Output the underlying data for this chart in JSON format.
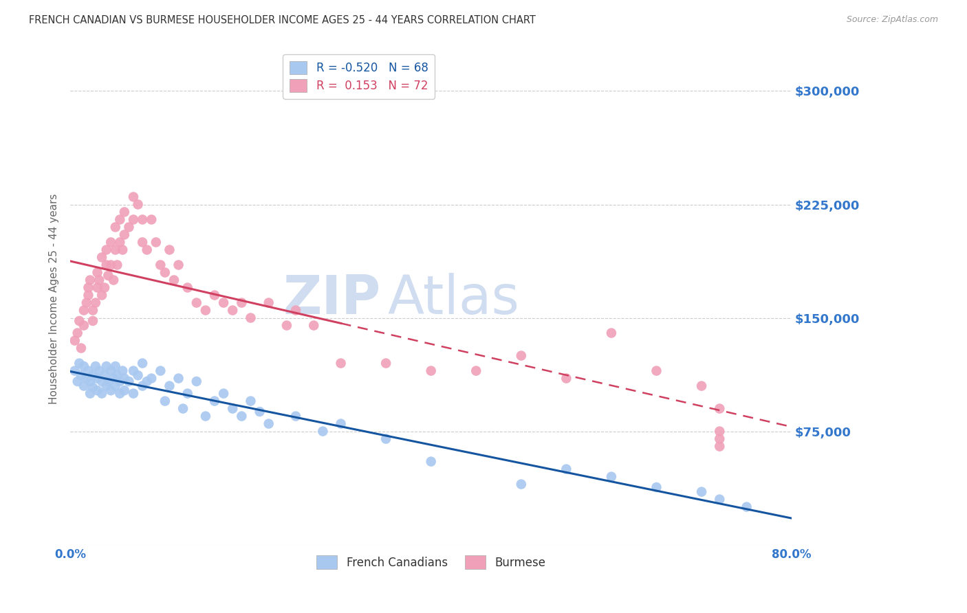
{
  "title": "FRENCH CANADIAN VS BURMESE HOUSEHOLDER INCOME AGES 25 - 44 YEARS CORRELATION CHART",
  "source": "Source: ZipAtlas.com",
  "ylabel": "Householder Income Ages 25 - 44 years",
  "xlim": [
    0.0,
    80.0
  ],
  "ylim": [
    0,
    325000
  ],
  "yticks": [
    0,
    75000,
    150000,
    225000,
    300000
  ],
  "ytick_labels": [
    "",
    "$75,000",
    "$150,000",
    "$225,000",
    "$300,000"
  ],
  "xticks": [
    0.0,
    16.0,
    32.0,
    48.0,
    64.0,
    80.0
  ],
  "xtick_labels": [
    "0.0%",
    "",
    "",
    "",
    "",
    "80.0%"
  ],
  "series1_label": "French Canadians",
  "series1_R": -0.52,
  "series1_N": 68,
  "series1_color": "#A8C8F0",
  "series1_line_color": "#1555A0",
  "series2_label": "Burmese",
  "series2_R": 0.153,
  "series2_N": 72,
  "series2_color": "#F0A0B8",
  "series2_line_color": "#D04060",
  "watermark": "ZIPAtlas",
  "watermark_color": "#D0DDF0",
  "background_color": "#FFFFFF",
  "tick_label_color": "#3377CC",
  "title_color": "#333333",
  "fc_x": [
    0.5,
    0.8,
    1.0,
    1.2,
    1.5,
    1.5,
    1.8,
    2.0,
    2.2,
    2.2,
    2.5,
    2.5,
    2.8,
    3.0,
    3.0,
    3.2,
    3.5,
    3.5,
    3.8,
    4.0,
    4.0,
    4.2,
    4.5,
    4.5,
    4.8,
    5.0,
    5.0,
    5.2,
    5.5,
    5.5,
    5.8,
    6.0,
    6.0,
    6.5,
    7.0,
    7.0,
    7.5,
    8.0,
    8.0,
    8.5,
    9.0,
    10.0,
    10.5,
    11.0,
    12.0,
    12.5,
    13.0,
    14.0,
    15.0,
    16.0,
    17.0,
    18.0,
    19.0,
    20.0,
    21.0,
    22.0,
    25.0,
    28.0,
    30.0,
    35.0,
    40.0,
    50.0,
    55.0,
    60.0,
    65.0,
    70.0,
    72.0,
    75.0
  ],
  "fc_y": [
    115000,
    108000,
    120000,
    112000,
    118000,
    105000,
    110000,
    115000,
    108000,
    100000,
    112000,
    104000,
    118000,
    110000,
    102000,
    115000,
    108000,
    100000,
    112000,
    118000,
    105000,
    108000,
    115000,
    102000,
    110000,
    118000,
    105000,
    112000,
    108000,
    100000,
    115000,
    110000,
    102000,
    108000,
    115000,
    100000,
    112000,
    120000,
    105000,
    108000,
    110000,
    115000,
    95000,
    105000,
    110000,
    90000,
    100000,
    108000,
    85000,
    95000,
    100000,
    90000,
    85000,
    95000,
    88000,
    80000,
    85000,
    75000,
    80000,
    70000,
    55000,
    40000,
    50000,
    45000,
    38000,
    35000,
    30000,
    25000
  ],
  "bm_x": [
    0.5,
    0.8,
    1.0,
    1.2,
    1.5,
    1.5,
    1.8,
    2.0,
    2.0,
    2.2,
    2.5,
    2.5,
    2.8,
    3.0,
    3.0,
    3.2,
    3.5,
    3.5,
    3.8,
    4.0,
    4.0,
    4.2,
    4.5,
    4.5,
    4.8,
    5.0,
    5.0,
    5.2,
    5.5,
    5.5,
    5.8,
    6.0,
    6.0,
    6.5,
    7.0,
    7.0,
    7.5,
    8.0,
    8.0,
    8.5,
    9.0,
    9.5,
    10.0,
    10.5,
    11.0,
    11.5,
    12.0,
    13.0,
    14.0,
    15.0,
    16.0,
    17.0,
    18.0,
    19.0,
    20.0,
    22.0,
    24.0,
    25.0,
    27.0,
    30.0,
    35.0,
    40.0,
    45.0,
    50.0,
    55.0,
    60.0,
    65.0,
    70.0,
    72.0,
    72.0,
    72.0,
    72.0
  ],
  "bm_y": [
    135000,
    140000,
    148000,
    130000,
    145000,
    155000,
    160000,
    170000,
    165000,
    175000,
    155000,
    148000,
    160000,
    170000,
    180000,
    175000,
    190000,
    165000,
    170000,
    185000,
    195000,
    178000,
    200000,
    185000,
    175000,
    210000,
    195000,
    185000,
    215000,
    200000,
    195000,
    220000,
    205000,
    210000,
    230000,
    215000,
    225000,
    200000,
    215000,
    195000,
    215000,
    200000,
    185000,
    180000,
    195000,
    175000,
    185000,
    170000,
    160000,
    155000,
    165000,
    160000,
    155000,
    160000,
    150000,
    160000,
    145000,
    155000,
    145000,
    120000,
    120000,
    115000,
    115000,
    125000,
    110000,
    140000,
    115000,
    105000,
    90000,
    75000,
    70000,
    65000
  ]
}
